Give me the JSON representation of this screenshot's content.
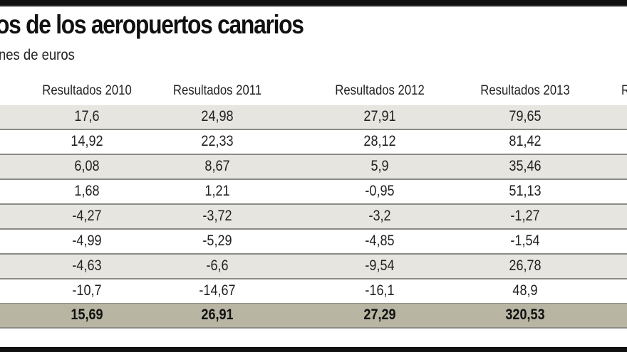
{
  "title": "os de los aeropuertos canarios",
  "subtitle": "nes de euros",
  "headers": [
    "Resultados 2010",
    "Resultados 2011",
    "Resultados 2012",
    "Resultados 2013",
    "R"
  ],
  "rows": [
    [
      "17,6",
      "24,98",
      "27,91",
      "79,65"
    ],
    [
      "14,92",
      "22,33",
      "28,12",
      "81,42"
    ],
    [
      "6,08",
      "8,67",
      "5,9",
      "35,46"
    ],
    [
      "1,68",
      "1,21",
      "-0,95",
      "51,13"
    ],
    [
      "-4,27",
      "-3,72",
      "-3,2",
      "-1,27"
    ],
    [
      "-4,99",
      "-5,29",
      "-4,85",
      "-1,54"
    ],
    [
      "-4,63",
      "-6,6",
      "-9,54",
      "26,78"
    ],
    [
      "-10,7",
      "-14,67",
      "-16,1",
      "48,9"
    ]
  ],
  "total": [
    "15,69",
    "26,91",
    "27,29",
    "320,53"
  ]
}
